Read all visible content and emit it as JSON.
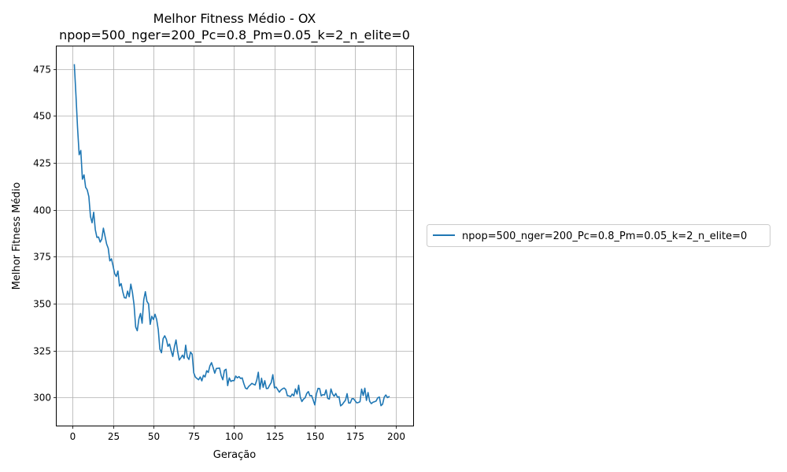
{
  "chart_data": {
    "type": "line",
    "title": "Melhor Fitness Médio - OX",
    "subtitle": "npop=500_nger=200_Pc=0.8_Pm=0.05_k=2_n_elite=0",
    "xlabel": "Geração",
    "ylabel": "Melhor Fitness Médio",
    "xlim": [
      -9.95,
      210.95
    ],
    "ylim": [
      285.1,
      487.0
    ],
    "xticks": [
      0,
      25,
      50,
      75,
      100,
      125,
      150,
      175,
      200
    ],
    "yticks": [
      300,
      325,
      350,
      375,
      400,
      425,
      450,
      475
    ],
    "grid": true,
    "legend_position": "right, outside plot",
    "series_color": "#1f77b4",
    "series": [
      {
        "name": "npop=500_nger=200_Pc=0.8_Pm=0.05_k=2_n_elite=0",
        "x_start": 1,
        "x_step": 1,
        "values": [
          477.2,
          461.0,
          443.5,
          429.3,
          431.6,
          416.3,
          418.6,
          412.0,
          410.6,
          407.0,
          396.5,
          393.1,
          398.7,
          389.4,
          385.3,
          385.5,
          382.8,
          384.4,
          390.2,
          386.0,
          381.8,
          379.5,
          372.8,
          373.9,
          370.1,
          366.0,
          364.5,
          367.4,
          359.4,
          360.7,
          356.4,
          353.2,
          353.0,
          356.7,
          353.7,
          360.4,
          356.0,
          349.4,
          337.6,
          335.6,
          341.9,
          344.8,
          339.6,
          352.0,
          356.4,
          351.2,
          349.9,
          339.0,
          343.3,
          341.6,
          344.4,
          341.6,
          336.2,
          325.8,
          323.9,
          331.4,
          332.9,
          331.1,
          327.3,
          328.5,
          324.9,
          321.9,
          327.0,
          330.7,
          324.6,
          320.0,
          321.2,
          322.6,
          320.9,
          327.9,
          321.6,
          320.3,
          324.2,
          323.1,
          313.2,
          310.9,
          310.2,
          309.5,
          311.0,
          308.9,
          311.9,
          311.0,
          314.3,
          313.4,
          316.9,
          318.6,
          316.0,
          313.0,
          315.5,
          315.6,
          315.7,
          311.7,
          309.5,
          314.5,
          315.1,
          306.4,
          310.5,
          308.6,
          309.1,
          309.0,
          311.5,
          310.5,
          311.2,
          310.2,
          310.5,
          307.5,
          305.1,
          304.6,
          305.9,
          306.7,
          307.6,
          307.1,
          306.7,
          309.2,
          313.5,
          304.5,
          310.3,
          305.5,
          309.0,
          304.8,
          304.9,
          306.6,
          308.0,
          312.2,
          305.2,
          305.6,
          304.3,
          302.9,
          304.0,
          304.7,
          305.1,
          304.3,
          301.0,
          300.9,
          300.5,
          301.9,
          300.9,
          304.6,
          301.9,
          306.6,
          300.2,
          297.9,
          299.2,
          299.9,
          302.2,
          303.2,
          300.9,
          301.1,
          298.7,
          296.1,
          302.0,
          304.9,
          304.8,
          300.9,
          301.6,
          301.4,
          304.1,
          299.6,
          299.2,
          304.6,
          302.0,
          300.7,
          302.2,
          300.2,
          300.5,
          295.6,
          296.3,
          297.5,
          298.6,
          302.1,
          297.1,
          297.2,
          299.4,
          299.4,
          298.3,
          297.2,
          297.4,
          297.8,
          304.5,
          301.1,
          305.0,
          298.5,
          302.7,
          298.0,
          296.8,
          297.5,
          297.8,
          298.2,
          299.9,
          300.3,
          295.7,
          296.5,
          300.2,
          301.4,
          300.0,
          300.5
        ]
      }
    ]
  }
}
